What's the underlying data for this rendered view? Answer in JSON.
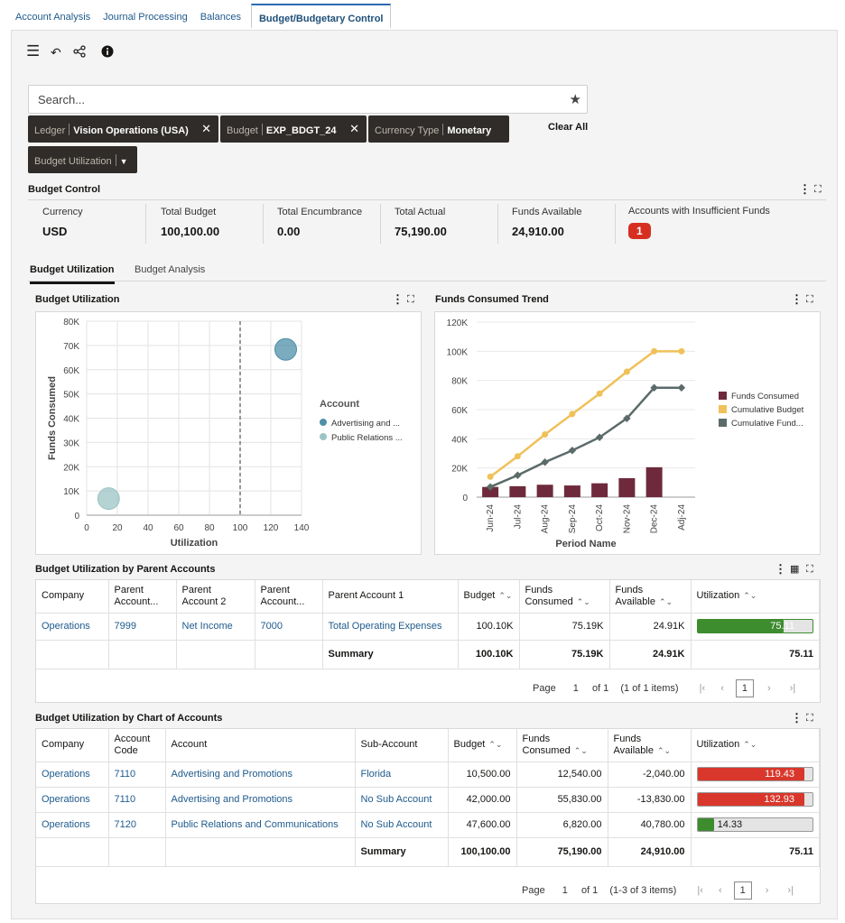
{
  "tabs": [
    "Account Analysis",
    "Journal Processing",
    "Balances",
    "Budget/Budgetary Control"
  ],
  "search": {
    "placeholder": "Search..."
  },
  "filters": [
    {
      "key": "Ledger",
      "value": "Vision Operations (USA)"
    },
    {
      "key": "Budget",
      "value": "EXP_BDGT_24"
    },
    {
      "key": "Currency Type",
      "value": "Monetary"
    },
    {
      "key": "Budget Utilization",
      "value": ""
    }
  ],
  "clear_all": "Clear All",
  "budget_control": {
    "title": "Budget Control",
    "kpis": [
      {
        "label": "Currency",
        "value": "USD"
      },
      {
        "label": "Total Budget",
        "value": "100,100.00"
      },
      {
        "label": "Total Encumbrance",
        "value": "0.00"
      },
      {
        "label": "Total Actual",
        "value": "75,190.00"
      },
      {
        "label": "Funds Available",
        "value": "24,910.00"
      },
      {
        "label": "Accounts with Insufficient Funds",
        "value": "1"
      }
    ]
  },
  "inner_tabs": [
    "Budget Utilization",
    "Budget Analysis"
  ],
  "colors": {
    "accent": "#1e5a8c",
    "fc_bar": "#6e2a3c",
    "cum_budget": "#f0c15a",
    "cum_funds": "#5b6b6a",
    "util_ok": "#3d8c2e",
    "util_bad": "#d9372b"
  },
  "chart_data": [
    {
      "type": "scatter",
      "title": "Budget Utilization",
      "xlabel": "Utilization",
      "ylabel": "Funds Consumed",
      "xlim": [
        0,
        140
      ],
      "ylim": [
        0,
        80000
      ],
      "xticks": [
        "0",
        "20",
        "40",
        "60",
        "80",
        "100",
        "120",
        "140"
      ],
      "yticks": [
        "0",
        "10K",
        "20K",
        "30K",
        "40K",
        "50K",
        "60K",
        "70K",
        "80K"
      ],
      "reference_line_x": 100,
      "legend_title": "Account",
      "series": [
        {
          "name": "Advertising and ...",
          "color": "#4f8fa8",
          "x": 129.7,
          "y": 68370
        },
        {
          "name": "Public Relations ...",
          "color": "#9cc4c4",
          "x": 14.3,
          "y": 6820
        }
      ]
    },
    {
      "type": "bar",
      "title": "Funds Consumed Trend",
      "xlabel": "Period Name",
      "ylabel": "",
      "ylim": [
        0,
        120000
      ],
      "yticks": [
        "0",
        "20K",
        "40K",
        "60K",
        "80K",
        "100K",
        "120K"
      ],
      "categories": [
        "Jun-24",
        "Jul-24",
        "Aug-24",
        "Sep-24",
        "Oct-24",
        "Nov-24",
        "Dec-24",
        "Adj-24"
      ],
      "series": [
        {
          "name": "Funds Consumed",
          "type": "bar",
          "values": [
            7000,
            7500,
            8500,
            8000,
            9500,
            13000,
            20500,
            0
          ]
        },
        {
          "name": "Cumulative Budget",
          "type": "line",
          "values": [
            14000,
            28000,
            43000,
            57000,
            71000,
            86000,
            100000,
            100000
          ]
        },
        {
          "name": "Cumulative Fund...",
          "type": "line",
          "values": [
            7000,
            15000,
            24000,
            32000,
            41000,
            54000,
            75000,
            75000
          ]
        }
      ]
    }
  ],
  "parent_table": {
    "title": "Budget Utilization by Parent Accounts",
    "headers": [
      "Company",
      "Parent Account...",
      "Parent Account 2",
      "Parent Account...",
      "Parent Account 1",
      "Budget",
      "Funds Consumed",
      "Funds Available",
      "Utilization"
    ],
    "rows": [
      {
        "company": "Operations",
        "pa3": "7999",
        "pa2": "Net Income",
        "pa4": "7000",
        "pa1": "Total Operating Expenses",
        "budget": "100.10K",
        "consumed": "75.19K",
        "available": "24.91K",
        "util": "75.11",
        "util_pct": 75.11
      }
    ],
    "summary": {
      "label": "Summary",
      "budget": "100.10K",
      "consumed": "75.19K",
      "available": "24.91K",
      "util": "75.11"
    },
    "pager": {
      "page_label": "Page",
      "page": "1",
      "of": "of 1",
      "items": "(1 of 1 items)",
      "current": "1"
    }
  },
  "coa_table": {
    "title": "Budget Utilization by Chart of Accounts",
    "headers": [
      "Company",
      "Account Code",
      "Account",
      "Sub-Account",
      "Budget",
      "Funds Consumed",
      "Funds Available",
      "Utilization"
    ],
    "rows": [
      {
        "company": "Operations",
        "code": "7110",
        "account": "Advertising and Promotions",
        "sub": "Florida",
        "budget": "10,500.00",
        "consumed": "12,540.00",
        "available": "-2,040.00",
        "util": "119.43",
        "util_pct": 119.43
      },
      {
        "company": "Operations",
        "code": "7110",
        "account": "Advertising and Promotions",
        "sub": "No Sub Account",
        "budget": "42,000.00",
        "consumed": "55,830.00",
        "available": "-13,830.00",
        "util": "132.93",
        "util_pct": 132.93
      },
      {
        "company": "Operations",
        "code": "7120",
        "account": "Public Relations and Communications",
        "sub": "No Sub Account",
        "budget": "47,600.00",
        "consumed": "6,820.00",
        "available": "40,780.00",
        "util": "14.33",
        "util_pct": 14.33
      }
    ],
    "summary": {
      "label": "Summary",
      "budget": "100,100.00",
      "consumed": "75,190.00",
      "available": "24,910.00",
      "util": "75.11"
    },
    "pager": {
      "page_label": "Page",
      "page": "1",
      "of": "of 1",
      "items": "(1-3 of 3 items)",
      "current": "1"
    }
  }
}
